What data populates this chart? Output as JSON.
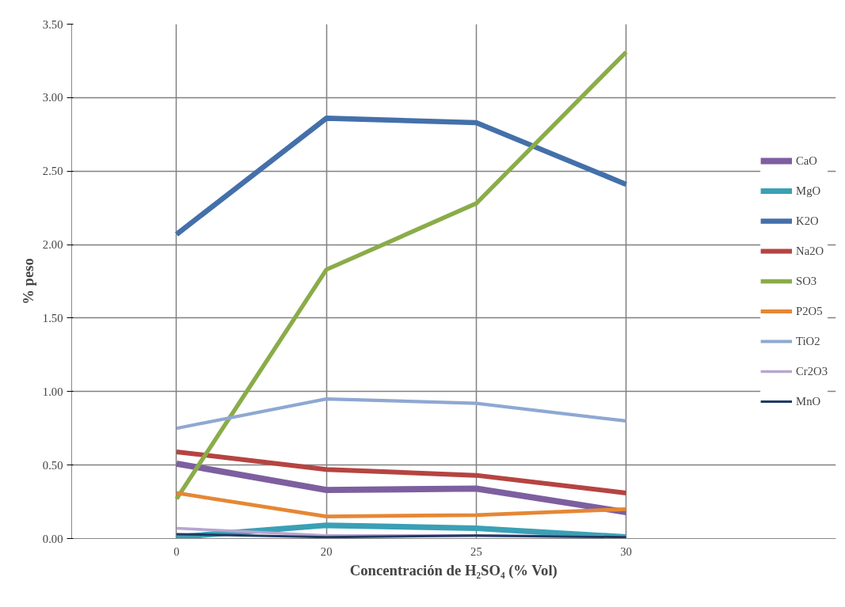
{
  "chart_data": {
    "type": "line",
    "xlabel": "Concentración de H₂SO₄ (% Vol)",
    "ylabel": "% peso",
    "categories": [
      "0",
      "20",
      "25",
      "30"
    ],
    "series": [
      {
        "name": "CaO",
        "color": "#7d5fa0",
        "values": [
          0.51,
          0.33,
          0.34,
          0.18
        ]
      },
      {
        "name": "MgO",
        "color": "#3aa0b5",
        "values": [
          0.01,
          0.09,
          0.07,
          0.01
        ]
      },
      {
        "name": "K2O",
        "color": "#4470aa",
        "values": [
          2.07,
          2.86,
          2.83,
          2.41
        ]
      },
      {
        "name": "Na2O",
        "color": "#b54441",
        "values": [
          0.59,
          0.47,
          0.43,
          0.31
        ]
      },
      {
        "name": "SO3",
        "color": "#8aac49",
        "values": [
          0.27,
          1.83,
          2.28,
          3.31
        ]
      },
      {
        "name": "P2O5",
        "color": "#e58735",
        "values": [
          0.31,
          0.15,
          0.16,
          0.2
        ]
      },
      {
        "name": "TiO2",
        "color": "#8ea8d2",
        "values": [
          0.75,
          0.95,
          0.92,
          0.8
        ]
      },
      {
        "name": "Cr2O3",
        "color": "#b7a5d0",
        "values": [
          0.07,
          0.02,
          0.02,
          0.01
        ]
      },
      {
        "name": "MnO",
        "color": "#1f3a63",
        "values": [
          0.03,
          0.01,
          0.02,
          0.01
        ]
      }
    ],
    "ylim": [
      0,
      3.5
    ],
    "yticks": [
      {
        "value": 0,
        "label": "0.00"
      },
      {
        "value": 0.5,
        "label": "0.50"
      },
      {
        "value": 1,
        "label": "1.00"
      },
      {
        "value": 1.5,
        "label": "1.50"
      },
      {
        "value": 2,
        "label": "2.00"
      },
      {
        "value": 2.5,
        "label": "2.50"
      },
      {
        "value": 3,
        "label": "3.00"
      },
      {
        "value": 3.5,
        "label": "3.50"
      }
    ],
    "grid": true,
    "legend": "right",
    "line_style": "solid",
    "marker": "none"
  }
}
